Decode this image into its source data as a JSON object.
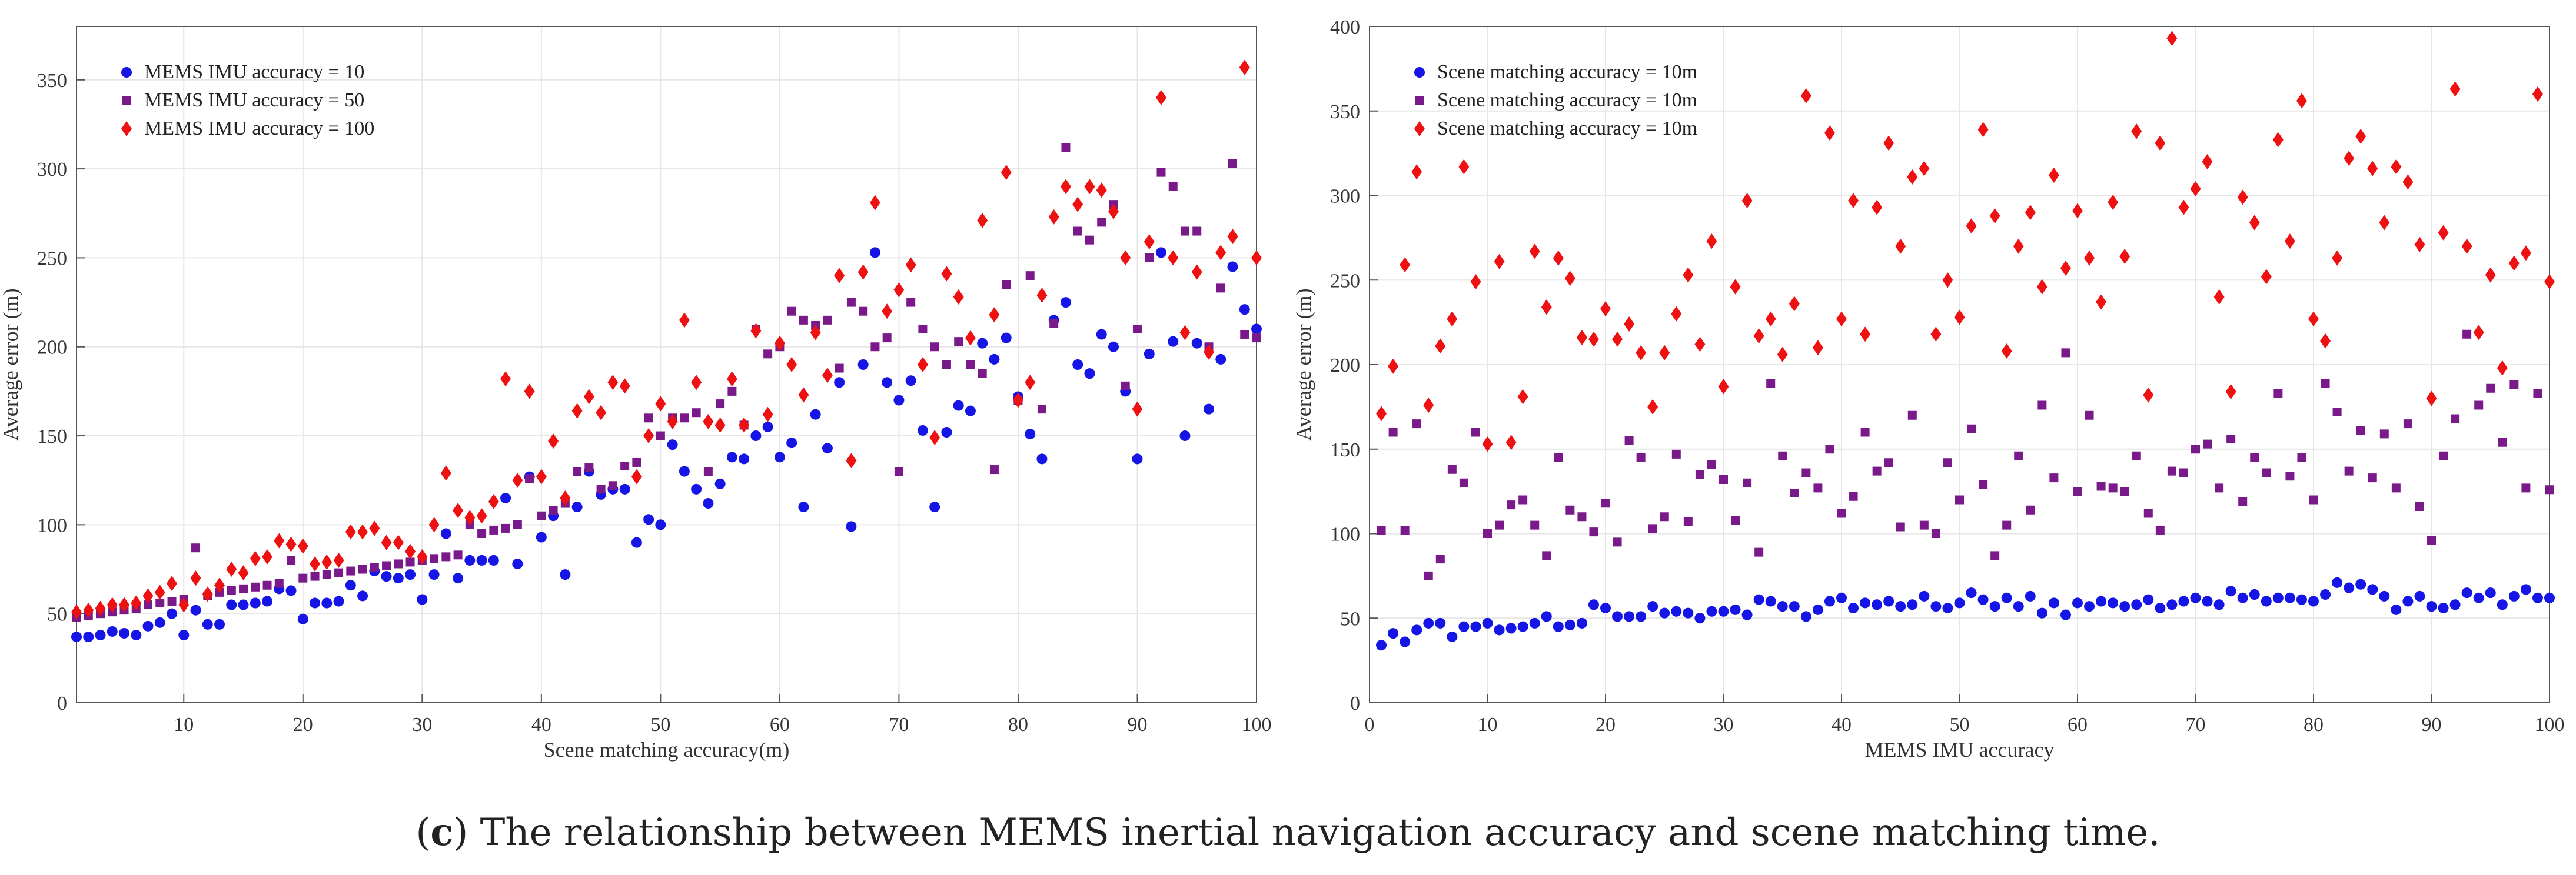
{
  "caption": {
    "label": "c",
    "text": "The relationship between MEMS inertial navigation accuracy and scene matching time."
  },
  "chart_data": [
    {
      "type": "scatter",
      "title": "",
      "xlabel": "Scene matching accuracy(m)",
      "ylabel": "Average error (m)",
      "xlim": [
        1,
        100
      ],
      "ylim": [
        0,
        380
      ],
      "xticks": [
        10,
        20,
        30,
        40,
        50,
        60,
        70,
        80,
        90,
        100
      ],
      "yticks": [
        0,
        50,
        100,
        150,
        200,
        250,
        300,
        350
      ],
      "grid": true,
      "legend_position": "top-left",
      "x": [
        1,
        2,
        3,
        4,
        5,
        6,
        7,
        8,
        9,
        10,
        11,
        12,
        13,
        14,
        15,
        16,
        17,
        18,
        19,
        20,
        21,
        22,
        23,
        24,
        25,
        26,
        27,
        28,
        29,
        30,
        31,
        32,
        33,
        34,
        35,
        36,
        37,
        38,
        39,
        40,
        41,
        42,
        43,
        44,
        45,
        46,
        47,
        48,
        49,
        50,
        51,
        52,
        53,
        54,
        55,
        56,
        57,
        58,
        59,
        60,
        61,
        62,
        63,
        64,
        65,
        66,
        67,
        68,
        69,
        70,
        71,
        72,
        73,
        74,
        75,
        76,
        77,
        78,
        79,
        80,
        81,
        82,
        83,
        84,
        85,
        86,
        87,
        88,
        89,
        90,
        91,
        92,
        93,
        94,
        95,
        96,
        97,
        98,
        99,
        100
      ],
      "series": [
        {
          "name": "MEMS IMU accuracy = 10",
          "color": "#1515e6",
          "marker": "circle",
          "values": [
            37,
            37,
            38,
            40,
            39,
            38,
            43,
            45,
            50,
            38,
            52,
            44,
            44,
            55,
            55,
            56,
            57,
            64,
            63,
            47,
            56,
            56,
            57,
            66,
            60,
            74,
            71,
            70,
            72,
            58,
            72,
            95,
            70,
            80,
            80,
            80,
            115,
            78,
            127,
            93,
            105,
            72,
            110,
            130,
            117,
            120,
            120,
            90,
            103,
            100,
            145,
            130,
            120,
            112,
            123,
            138,
            137,
            150,
            155,
            138,
            146,
            110,
            162,
            143,
            180,
            99,
            190,
            253,
            180,
            170,
            181,
            153,
            110,
            152,
            167,
            164,
            202,
            193,
            205,
            172,
            151,
            137,
            215,
            225,
            190,
            185,
            207,
            200,
            175,
            137,
            196,
            253,
            203,
            150,
            202,
            165,
            193,
            245,
            221,
            210
          ]
        },
        {
          "name": "MEMS IMU accuracy = 50",
          "color": "#7a1a8a",
          "marker": "square",
          "values": [
            48,
            49,
            50,
            51,
            52,
            53,
            55,
            56,
            57,
            58,
            87,
            60,
            62,
            63,
            64,
            65,
            66,
            67,
            80,
            70,
            71,
            72,
            73,
            74,
            75,
            76,
            77,
            78,
            79,
            80,
            81,
            82,
            83,
            100,
            95,
            97,
            98,
            100,
            126,
            105,
            108,
            112,
            130,
            132,
            120,
            122,
            133,
            135,
            160,
            150,
            160,
            160,
            163,
            130,
            168,
            175,
            156,
            210,
            196,
            200,
            220,
            215,
            212,
            215,
            188,
            225,
            220,
            200,
            205,
            130,
            225,
            210,
            200,
            190,
            203,
            190,
            185,
            131,
            235,
            170,
            240,
            165,
            213,
            312,
            265,
            260,
            270,
            280,
            178,
            210,
            250,
            298,
            290,
            265,
            265,
            200,
            233,
            303,
            207,
            205
          ]
        },
        {
          "name": "MEMS IMU accuracy = 100",
          "color": "#ee1111",
          "marker": "diamond",
          "values": [
            51,
            52,
            53,
            55,
            55,
            56,
            60,
            62,
            67,
            55,
            70,
            61,
            66,
            75,
            73,
            81,
            82,
            91,
            89,
            88,
            78,
            79,
            80,
            96,
            96,
            98,
            90,
            90,
            85,
            82,
            100,
            129,
            108,
            104,
            105,
            113,
            182,
            125,
            175,
            127,
            147,
            115,
            164,
            172,
            163,
            180,
            178,
            127,
            150,
            168,
            158,
            215,
            180,
            158,
            156,
            182,
            156,
            209,
            162,
            202,
            190,
            173,
            208,
            184,
            240,
            136,
            242,
            281,
            220,
            232,
            246,
            190,
            149,
            241,
            228,
            205,
            271,
            218,
            298,
            170,
            180,
            229,
            273,
            290,
            280,
            290,
            288,
            276,
            250,
            165,
            259,
            340,
            250,
            208,
            242,
            197,
            253,
            262,
            357,
            250
          ]
        }
      ]
    },
    {
      "type": "scatter",
      "title": "",
      "xlabel": "MEMS IMU accuracy",
      "ylabel": "Average error (m)",
      "xlim": [
        0,
        100
      ],
      "ylim": [
        0,
        400
      ],
      "xticks": [
        0,
        10,
        20,
        30,
        40,
        50,
        60,
        70,
        80,
        90,
        100
      ],
      "yticks": [
        0,
        50,
        100,
        150,
        200,
        250,
        300,
        350,
        400
      ],
      "grid": true,
      "legend_position": "top-left",
      "x": [
        1,
        2,
        3,
        4,
        5,
        6,
        7,
        8,
        9,
        10,
        11,
        12,
        13,
        14,
        15,
        16,
        17,
        18,
        19,
        20,
        21,
        22,
        23,
        24,
        25,
        26,
        27,
        28,
        29,
        30,
        31,
        32,
        33,
        34,
        35,
        36,
        37,
        38,
        39,
        40,
        41,
        42,
        43,
        44,
        45,
        46,
        47,
        48,
        49,
        50,
        51,
        52,
        53,
        54,
        55,
        56,
        57,
        58,
        59,
        60,
        61,
        62,
        63,
        64,
        65,
        66,
        67,
        68,
        69,
        70,
        71,
        72,
        73,
        74,
        75,
        76,
        77,
        78,
        79,
        80,
        81,
        82,
        83,
        84,
        85,
        86,
        87,
        88,
        89,
        90,
        91,
        92,
        93,
        94,
        95,
        96,
        97,
        98,
        99,
        100
      ],
      "series": [
        {
          "name": "Scene matching accuracy = 10m",
          "color": "#1515e6",
          "marker": "circle",
          "values": [
            34,
            41,
            36,
            43,
            47,
            47,
            39,
            45,
            45,
            47,
            43,
            44,
            45,
            47,
            51,
            45,
            46,
            47,
            58,
            56,
            51,
            51,
            51,
            57,
            53,
            54,
            53,
            50,
            54,
            54,
            55,
            52,
            61,
            60,
            57,
            57,
            51,
            55,
            60,
            62,
            56,
            59,
            58,
            60,
            57,
            58,
            63,
            57,
            56,
            59,
            65,
            61,
            57,
            62,
            57,
            63,
            53,
            59,
            52,
            59,
            57,
            60,
            59,
            57,
            58,
            61,
            56,
            58,
            60,
            62,
            60,
            58,
            66,
            62,
            64,
            60,
            62,
            62,
            61,
            60,
            64,
            71,
            68,
            70,
            67,
            63,
            55,
            60,
            63,
            57,
            56,
            58,
            65,
            62,
            65,
            58,
            63,
            67,
            62,
            62
          ]
        },
        {
          "name": "Scene matching accuracy = 10m",
          "color": "#7a1a8a",
          "marker": "square",
          "values": [
            102,
            160,
            102,
            165,
            75,
            85,
            138,
            130,
            160,
            100,
            105,
            117,
            120,
            105,
            87,
            145,
            114,
            110,
            101,
            118,
            95,
            155,
            145,
            103,
            110,
            147,
            107,
            135,
            141,
            132,
            108,
            130,
            89,
            189,
            146,
            124,
            136,
            127,
            150,
            112,
            122,
            160,
            137,
            142,
            104,
            170,
            105,
            100,
            142,
            120,
            162,
            129,
            87,
            105,
            146,
            114,
            176,
            133,
            207,
            125,
            170,
            128,
            127,
            125,
            146,
            112,
            102,
            137,
            136,
            150,
            153,
            127,
            156,
            119,
            145,
            136,
            183,
            134,
            145,
            120,
            189,
            172,
            137,
            161,
            133,
            159,
            127,
            165,
            116,
            96,
            146,
            168,
            218,
            176,
            186,
            154,
            188,
            127,
            183,
            126
          ]
        },
        {
          "name": "Scene matching accuracy = 10m",
          "color": "#ee1111",
          "marker": "diamond",
          "values": [
            171,
            199,
            259,
            314,
            176,
            211,
            227,
            317,
            249,
            153,
            261,
            154,
            181,
            267,
            234,
            263,
            251,
            216,
            215,
            233,
            215,
            224,
            207,
            175,
            207,
            230,
            253,
            212,
            273,
            187,
            246,
            297,
            217,
            227,
            206,
            236,
            359,
            210,
            337,
            227,
            297,
            218,
            293,
            331,
            270,
            311,
            316,
            218,
            250,
            228,
            282,
            339,
            288,
            208,
            270,
            290,
            246,
            312,
            257,
            291,
            263,
            237,
            296,
            264,
            338,
            182,
            331,
            393,
            293,
            304,
            320,
            240,
            184,
            299,
            284,
            252,
            333,
            273,
            356,
            227,
            214,
            263,
            322,
            335,
            316,
            284,
            317,
            308,
            271,
            180,
            278,
            363,
            270,
            219,
            253,
            198,
            260,
            266,
            360,
            249
          ]
        }
      ]
    }
  ]
}
